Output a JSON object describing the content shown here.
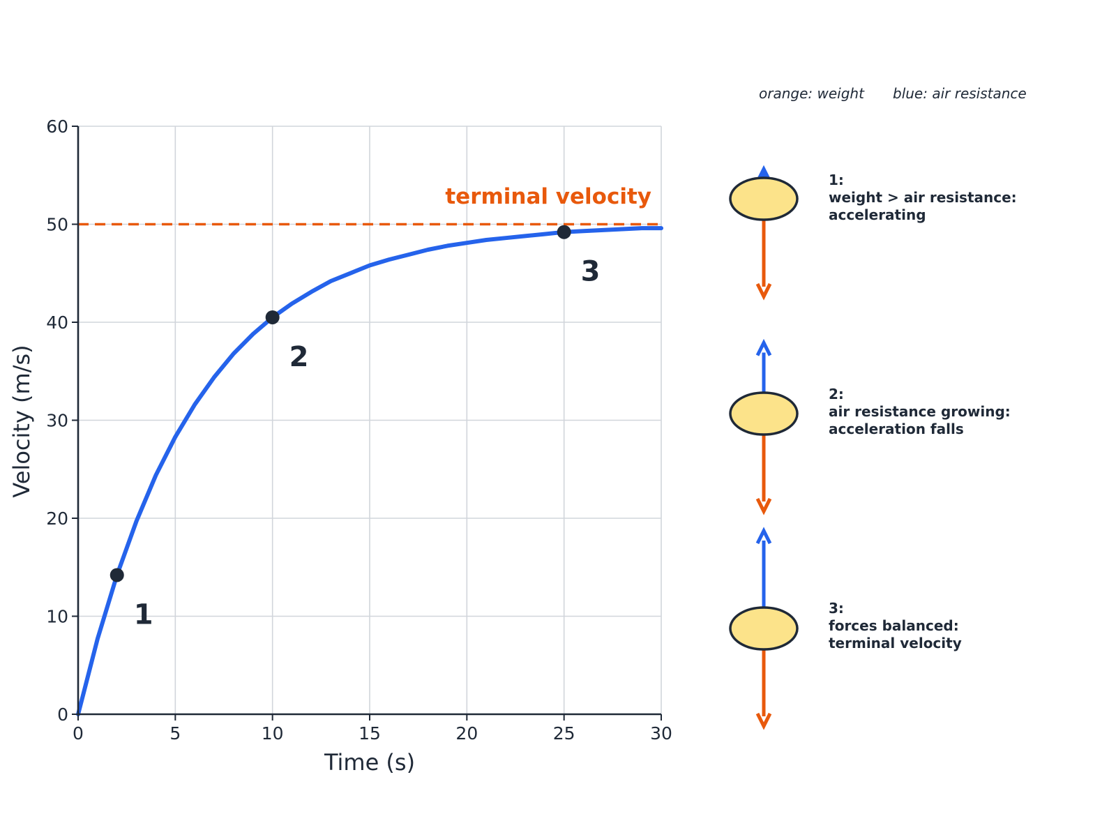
{
  "chart_data": {
    "type": "line",
    "xlabel": "Time (s)",
    "ylabel": "Velocity (m/s)",
    "xlim": [
      0,
      30
    ],
    "ylim": [
      0,
      60
    ],
    "x_ticks": [
      0,
      5,
      10,
      15,
      20,
      25,
      30
    ],
    "y_ticks": [
      0,
      10,
      20,
      30,
      40,
      50,
      60
    ],
    "grid": true,
    "series": [
      {
        "x": [
          0,
          1,
          2,
          3,
          4,
          5,
          6,
          7,
          8,
          9,
          10,
          11,
          12,
          13,
          14,
          15,
          16,
          17,
          18,
          19,
          20,
          21,
          22,
          23,
          24,
          25,
          26,
          27,
          28,
          29,
          30
        ],
        "y": [
          0,
          7.7,
          14.2,
          19.7,
          24.4,
          28.3,
          31.6,
          34.4,
          36.8,
          38.8,
          40.5,
          41.9,
          43.1,
          44.2,
          45.0,
          45.8,
          46.4,
          46.9,
          47.4,
          47.8,
          48.1,
          48.4,
          48.6,
          48.8,
          49.0,
          49.2,
          49.3,
          49.4,
          49.5,
          49.6,
          49.6
        ],
        "color": "#2563eb"
      }
    ],
    "reference_line": {
      "y": 50,
      "label": "terminal velocity",
      "color": "#e8590c",
      "style": "dashed"
    },
    "points": [
      {
        "label": "1",
        "x": 2,
        "y": 14.2
      },
      {
        "label": "2",
        "x": 10,
        "y": 40.5
      },
      {
        "label": "3",
        "x": 25,
        "y": 49.2
      }
    ]
  },
  "legend": {
    "weight": "orange: weight",
    "air": "blue: air resistance"
  },
  "colors": {
    "weight": "#e8590c",
    "air": "#2563eb",
    "body_fill": "#fce38a",
    "outline": "#1f2937"
  },
  "panels": [
    {
      "number": "1:",
      "line1": "weight > air resistance:",
      "line2": "accelerating",
      "air_resistance_relative": 0.15
    },
    {
      "number": "2:",
      "line1": "air resistance growing:",
      "line2": "acceleration falls",
      "air_resistance_relative": 0.65
    },
    {
      "number": "3:",
      "line1": "forces balanced:",
      "line2": "terminal velocity",
      "air_resistance_relative": 1.0
    }
  ]
}
